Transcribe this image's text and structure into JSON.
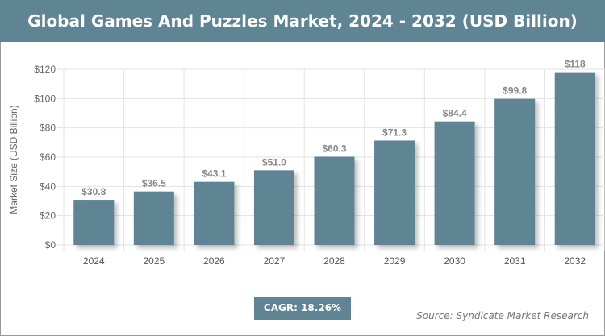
{
  "chart_data": {
    "type": "bar",
    "title": "Global Games And Puzzles Market, 2024 - 2032 (USD Billion)",
    "categories": [
      "2024",
      "2025",
      "2026",
      "2027",
      "2028",
      "2029",
      "2030",
      "2031",
      "2032"
    ],
    "values": [
      30.8,
      36.5,
      43.1,
      51.0,
      60.3,
      71.3,
      84.4,
      99.8,
      118
    ],
    "data_labels": [
      "$30.8",
      "$36.5",
      "$43.1",
      "$51.0",
      "$60.3",
      "$71.3",
      "$84.4",
      "$99.8",
      "$118"
    ],
    "xlabel": "",
    "ylabel": "Market Size (USD Billion)",
    "ylim": [
      0,
      120
    ],
    "yticks": [
      0,
      20,
      40,
      60,
      80,
      100,
      120
    ],
    "ytick_labels": [
      "$0",
      "$20",
      "$40",
      "$60",
      "$80",
      "$100",
      "$120"
    ],
    "grid": true,
    "bar_color": "#5f8493"
  },
  "cagr": "CAGR: 18.26%",
  "source": "Source: Syndicate Market Research"
}
